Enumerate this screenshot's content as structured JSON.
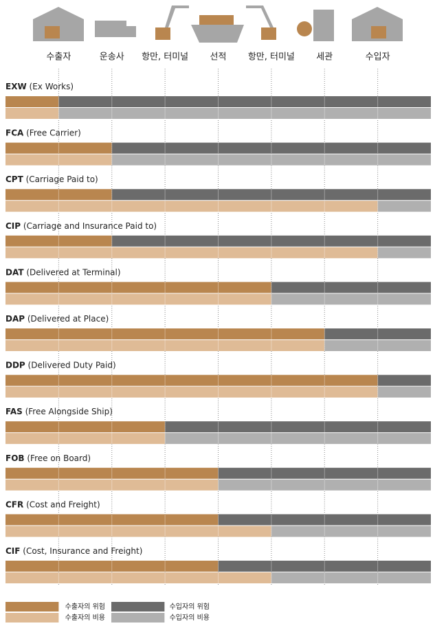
{
  "stages": [
    "수출자",
    "운송사",
    "항만, 터미널",
    "선적",
    "항만, 터미널",
    "세관",
    "수입자"
  ],
  "rows": [
    {
      "code": "EXW",
      "name": "(Ex Works)",
      "risk": 1,
      "cost": 1
    },
    {
      "code": "FCA",
      "name": "(Free Carrier)",
      "risk": 2,
      "cost": 2
    },
    {
      "code": "CPT",
      "name": "(Carriage Paid to)",
      "risk": 2,
      "cost": 7
    },
    {
      "code": "CIP",
      "name": "(Carriage and Insurance Paid to)",
      "risk": 2,
      "cost": 7
    },
    {
      "code": "DAT",
      "name": "(Delivered at Terminal)",
      "risk": 5,
      "cost": 5
    },
    {
      "code": "DAP",
      "name": "(Delivered at Place)",
      "risk": 6,
      "cost": 6
    },
    {
      "code": "DDP",
      "name": "(Delivered Duty Paid)",
      "risk": 7,
      "cost": 7
    },
    {
      "code": "FAS",
      "name": "(Free Alongside Ship)",
      "risk": 3,
      "cost": 3
    },
    {
      "code": "FOB",
      "name": "(Free on Board)",
      "risk": 4,
      "cost": 4
    },
    {
      "code": "CFR",
      "name": "(Cost and Freight)",
      "risk": 4,
      "cost": 5
    },
    {
      "code": "CIF",
      "name": "(Cost, Insurance and Freight)",
      "risk": 4,
      "cost": 5
    }
  ],
  "legend": {
    "exporter_risk": "수출자의 위험",
    "exporter_cost": "수출자의 비용",
    "importer_risk": "수입자의 위험",
    "importer_cost": "수입자의 비용"
  }
}
